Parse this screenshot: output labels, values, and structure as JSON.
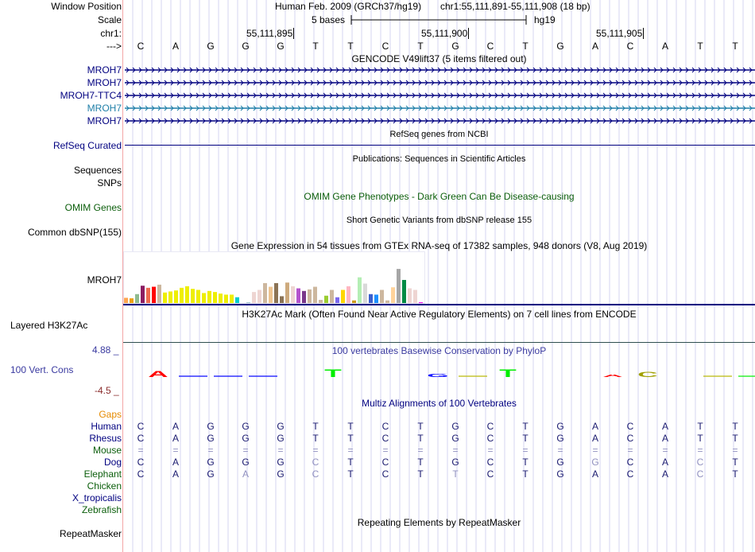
{
  "header": {
    "assembly_label": "Human Feb. 2009 (GRCh37/hg19)",
    "position_label": "chr1:55,111,891-55,111,908 (18 bp)",
    "scale_text": "5 bases",
    "scale_assembly": "hg19",
    "ticks": [
      "55,111,895",
      "55,111,900",
      "55,111,905"
    ]
  },
  "left_labels": {
    "window_position": "Window Position",
    "scale": "Scale",
    "chrom": "chr1:",
    "strand": "--->"
  },
  "sequence": [
    "C",
    "A",
    "G",
    "G",
    "G",
    "T",
    "T",
    "C",
    "T",
    "G",
    "C",
    "T",
    "G",
    "A",
    "C",
    "A",
    "T",
    "T"
  ],
  "gencode": {
    "title": "GENCODE V49lift37 (5 items filtered out)",
    "items": [
      {
        "label": "MROH7",
        "color": "#000080"
      },
      {
        "label": "MROH7",
        "color": "#000080"
      },
      {
        "label": "MROH7-TTC4",
        "color": "#000080"
      },
      {
        "label": "MROH7",
        "color": "#1f7fa8"
      },
      {
        "label": "MROH7",
        "color": "#000080"
      }
    ]
  },
  "refseq": {
    "title": "RefSeq genes from NCBI",
    "label": "RefSeq Curated"
  },
  "publications": {
    "title": "Publications: Sequences in Scientific Articles",
    "labels": [
      "Sequences",
      "SNPs"
    ]
  },
  "omim": {
    "title": "OMIM Gene Phenotypes - Dark Green Can Be Disease-causing",
    "label": "OMIM Genes"
  },
  "dbsnp": {
    "title": "Short Genetic Variants from dbSNP release 155",
    "label": "Common dbSNP(155)"
  },
  "gtex": {
    "title": "Gene Expression in 54 tissues from GTEx RNA-seq of 17382 samples, 948 donors (V8, Aug 2019)",
    "label": "MROH7"
  },
  "h3k27ac": {
    "title": "H3K27Ac Mark (Often Found Near Active Regulatory Elements) on 7 cell lines from ENCODE",
    "label": "Layered H3K27Ac"
  },
  "conservation": {
    "title": "100 vertebrates Basewise Conservation by PhyloP",
    "label": "100 Vert. Cons",
    "max_label": "4.88 _",
    "min_label": "-4.5 _",
    "logo": [
      {
        "base": "A",
        "score": 1.0,
        "color": "#ff0000"
      },
      {
        "base": "-",
        "score": 0.1,
        "color": "#0000ff"
      },
      {
        "base": "-",
        "score": 0.2,
        "color": "#0000ff"
      },
      {
        "base": "-",
        "score": 0.1,
        "color": "#0000ff"
      },
      {
        "base": "",
        "score": 0,
        "color": "#ffffff"
      },
      {
        "base": "T",
        "score": 1.2,
        "color": "#00ee00"
      },
      {
        "base": "",
        "score": 0,
        "color": "#ffffff"
      },
      {
        "base": "",
        "score": 0,
        "color": "#ffffff"
      },
      {
        "base": "G",
        "score": 0.5,
        "color": "#0000ff"
      },
      {
        "base": "-",
        "score": 0.2,
        "color": "#b8b800"
      },
      {
        "base": "T",
        "score": 1.2,
        "color": "#00ee00"
      },
      {
        "base": "",
        "score": 0,
        "color": "#ffffff"
      },
      {
        "base": "",
        "score": 0,
        "color": "#ffffff"
      },
      {
        "base": "A",
        "score": 0.4,
        "color": "#ff0000"
      },
      {
        "base": "C",
        "score": 0.8,
        "color": "#a0a000"
      },
      {
        "base": "",
        "score": 0,
        "color": "#ffffff"
      },
      {
        "base": "-",
        "score": 0.1,
        "color": "#b8b800"
      },
      {
        "base": "-",
        "score": 0.1,
        "color": "#00ee00"
      }
    ]
  },
  "multiz": {
    "title": "Multiz Alignments of 100 Vertebrates",
    "gaps_label": "Gaps",
    "species": [
      {
        "name": "Human",
        "color": "#000080",
        "bases": [
          "C",
          "A",
          "G",
          "G",
          "G",
          "T",
          "T",
          "C",
          "T",
          "G",
          "C",
          "T",
          "G",
          "A",
          "C",
          "A",
          "T",
          "T"
        ],
        "faded": []
      },
      {
        "name": "Rhesus",
        "color": "#000080",
        "bases": [
          "C",
          "A",
          "G",
          "G",
          "G",
          "T",
          "T",
          "C",
          "T",
          "G",
          "C",
          "T",
          "G",
          "A",
          "C",
          "A",
          "T",
          "T"
        ],
        "faded": []
      },
      {
        "name": "Mouse",
        "color": "#0b5e0b",
        "bases": [
          "=",
          "=",
          "=",
          "=",
          "=",
          "=",
          "=",
          "=",
          "=",
          "=",
          "=",
          "=",
          "=",
          "=",
          "=",
          "=",
          "=",
          "="
        ],
        "faded": [
          0,
          1,
          2,
          3,
          4,
          5,
          6,
          7,
          8,
          9,
          10,
          11,
          12,
          13,
          14,
          15,
          16,
          17
        ]
      },
      {
        "name": "Dog",
        "color": "#000080",
        "bases": [
          "C",
          "A",
          "G",
          "G",
          "G",
          "C",
          "T",
          "C",
          "T",
          "G",
          "C",
          "T",
          "G",
          "G",
          "C",
          "A",
          "C",
          "T"
        ],
        "faded": [
          5,
          13,
          16
        ]
      },
      {
        "name": "Elephant",
        "color": "#0b5e0b",
        "bases": [
          "C",
          "A",
          "G",
          "A",
          "G",
          "C",
          "T",
          "C",
          "T",
          "T",
          "C",
          "T",
          "G",
          "A",
          "C",
          "A",
          "C",
          "T"
        ],
        "faded": [
          3,
          5,
          9,
          16
        ]
      },
      {
        "name": "Chicken",
        "color": "#0b5e0b",
        "bases": [],
        "faded": []
      },
      {
        "name": "X_tropicalis",
        "color": "#000080",
        "bases": [],
        "faded": []
      },
      {
        "name": "Zebrafish",
        "color": "#0b5e0b",
        "bases": [],
        "faded": []
      }
    ]
  },
  "repeatmasker": {
    "title": "Repeating Elements by RepeatMasker",
    "label": "RepeatMasker"
  },
  "chart_data": {
    "type": "bar",
    "title": "Gene Expression in 54 tissues from GTEx RNA-seq of 17382 samples, 948 donors (V8, Aug 2019)",
    "xlabel": "",
    "ylabel": "",
    "ylim": [
      0,
      100
    ],
    "values": [
      10,
      9,
      17,
      33,
      29,
      31,
      35,
      20,
      22,
      24,
      29,
      32,
      27,
      25,
      19,
      23,
      21,
      18,
      16,
      16,
      11,
      0,
      1,
      21,
      25,
      38,
      31,
      38,
      13,
      39,
      32,
      28,
      23,
      26,
      31,
      6,
      14,
      25,
      11,
      25,
      32,
      5,
      49,
      37,
      17,
      16,
      25,
      5,
      30,
      65,
      44,
      28,
      25,
      1
    ],
    "colors": [
      "#ffa54f",
      "#eea111",
      "#8fbc8f",
      "#8b1c62",
      "#ee6a50",
      "#ff0000",
      "#cdb79e",
      "#eeee00",
      "#eeee00",
      "#eeee00",
      "#eeee00",
      "#eeee00",
      "#eeee00",
      "#eeee00",
      "#eeee00",
      "#eeee00",
      "#eeee00",
      "#eeee00",
      "#eeee00",
      "#eeee00",
      "#00cdcd",
      "#9ac0cd",
      "#9ac0cd",
      "#eed5d2",
      "#eed5d2",
      "#cdb79e",
      "#eec591",
      "#8b7355",
      "#8b7355",
      "#cdaa7d",
      "#eed5d2",
      "#b452cd",
      "#7a378b",
      "#cdb79e",
      "#cdb79e",
      "#cdb79e",
      "#9acd32",
      "#cdb79e",
      "#7b68ee",
      "#ffd700",
      "#ffb6c1",
      "#cd9b1d",
      "#b4eeb4",
      "#d9d9d9",
      "#3a5fcd",
      "#1e90ff",
      "#cdb79e",
      "#cdb79e",
      "#ffd39b",
      "#a6a6a6",
      "#008b45",
      "#eed5d2",
      "#eed5d2",
      "#ee00ee"
    ]
  }
}
